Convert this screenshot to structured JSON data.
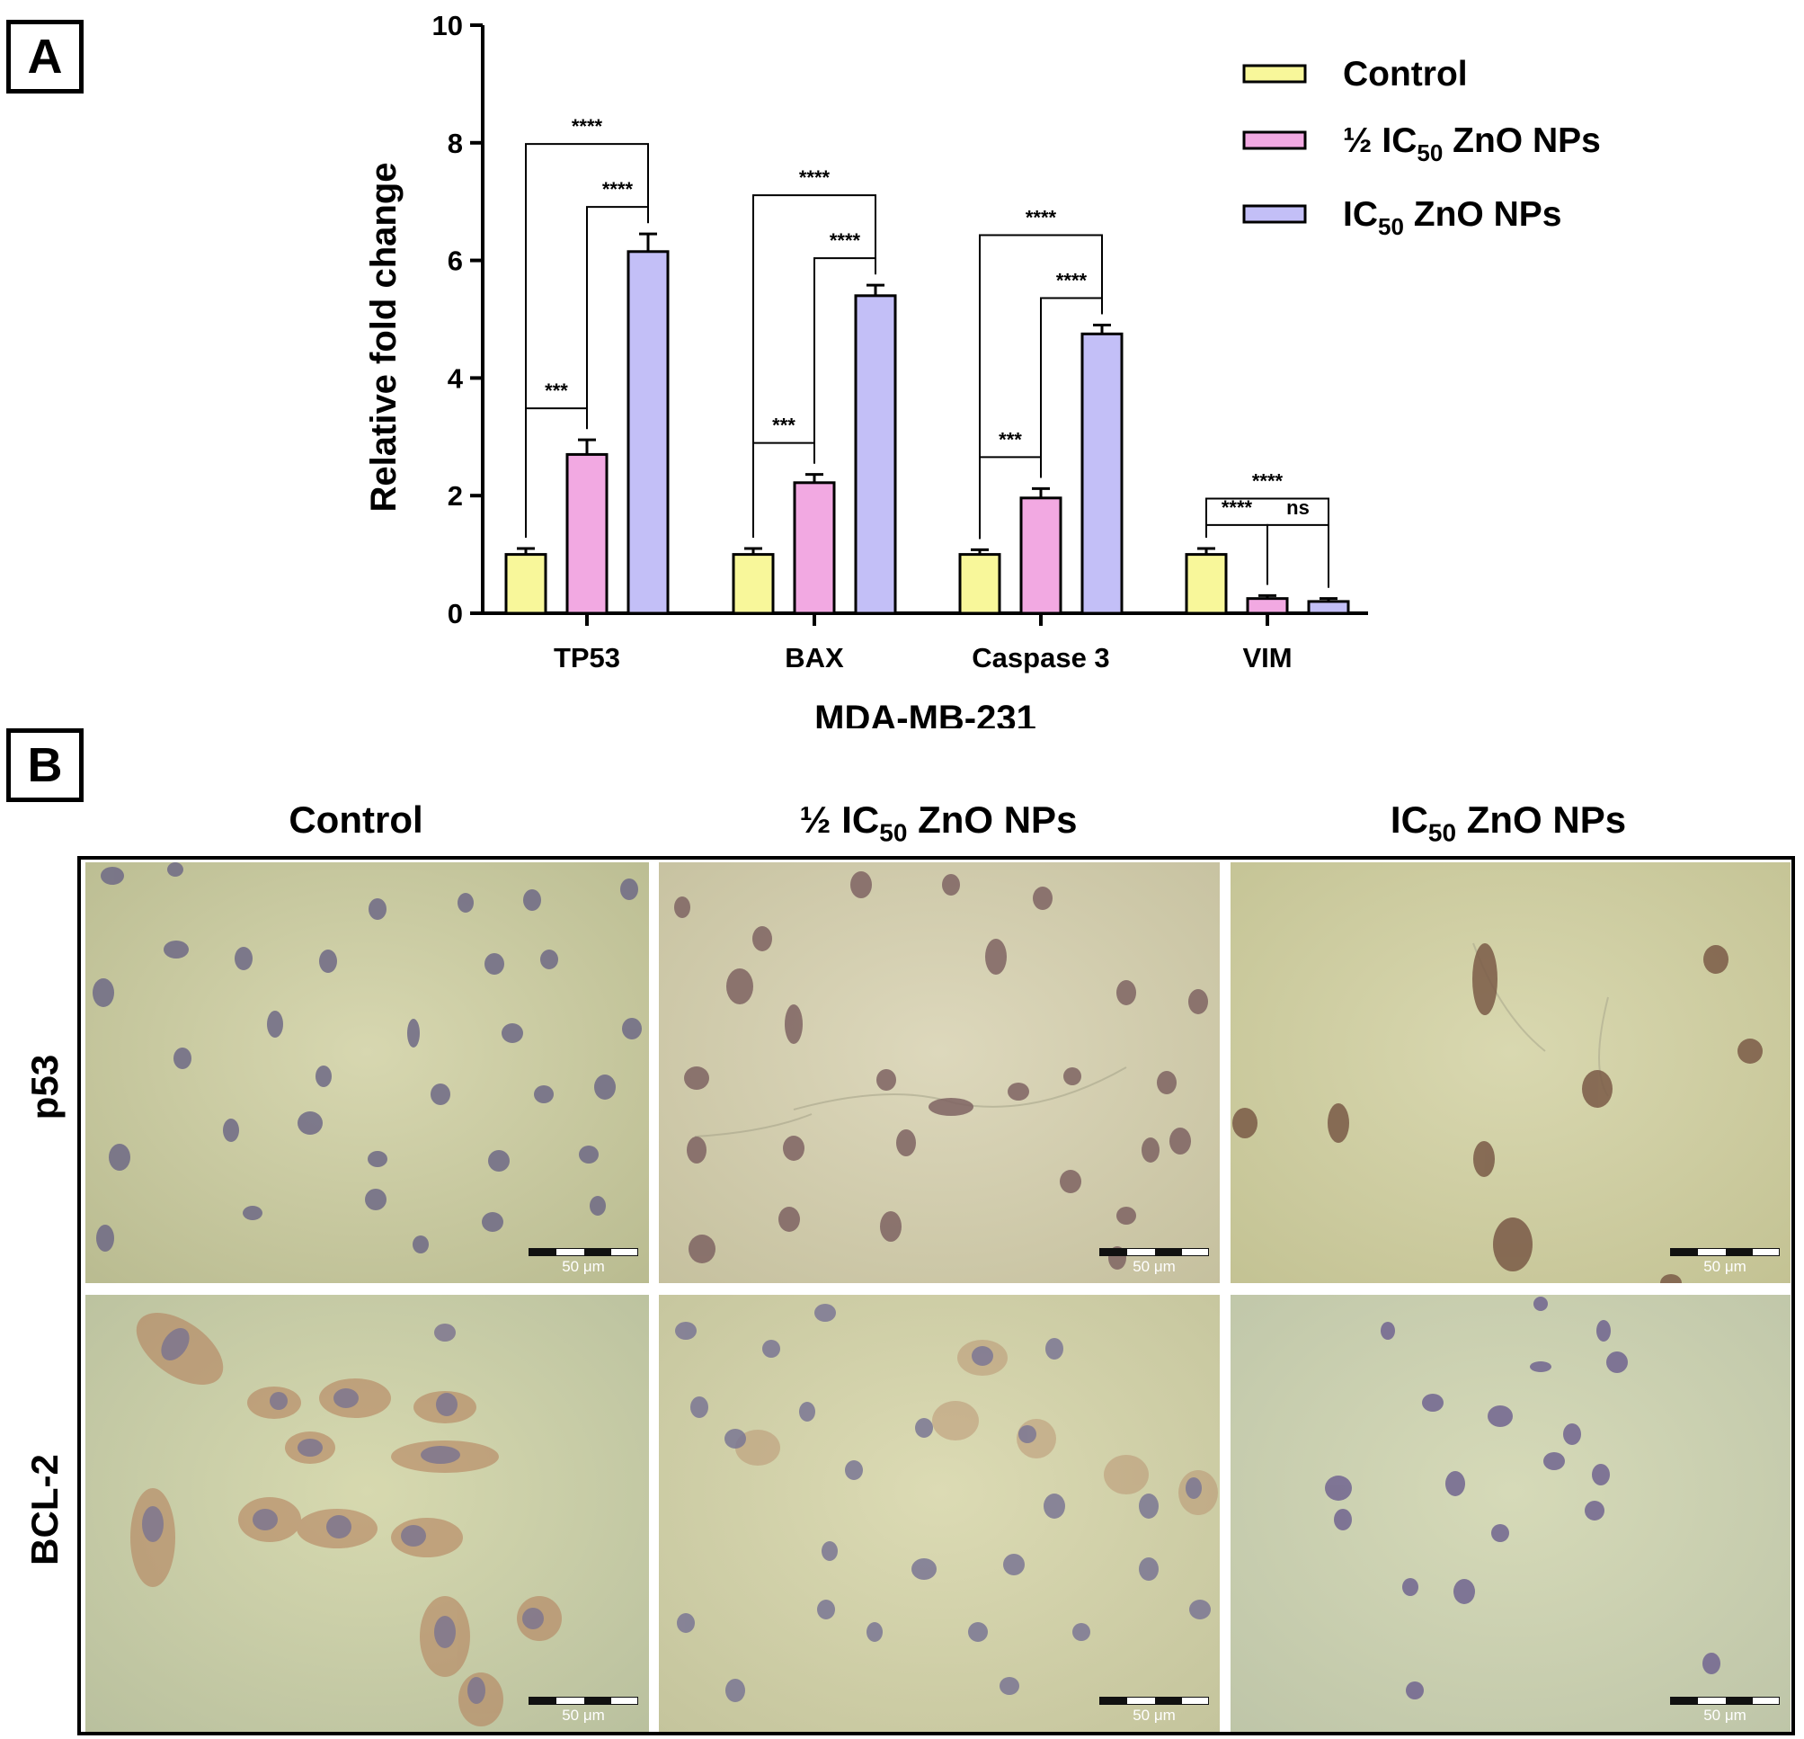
{
  "panel_a_label": "A",
  "panel_b_label": "B",
  "chart_data": {
    "type": "bar",
    "title": "",
    "xlabel": "MDA-MB-231",
    "ylabel": "Relative fold change",
    "ylim": [
      0,
      10
    ],
    "yticks": [
      "0",
      "2",
      "4",
      "6",
      "8",
      "10"
    ],
    "categories": [
      "TP53",
      "BAX",
      "Caspase 3",
      "VIM"
    ],
    "legend_position": "top-right",
    "series": [
      {
        "name": "Control",
        "label_main": "Control",
        "label_sub": "",
        "label_tail": "",
        "color": "#f8f79a",
        "values": [
          1.0,
          1.0,
          1.0,
          1.0
        ],
        "errors": [
          0.1,
          0.1,
          0.08,
          0.1
        ]
      },
      {
        "name": "½ IC50 ZnO NPs",
        "label_main": "½ IC",
        "label_sub": "50",
        "label_tail": " ZnO NPs",
        "color": "#f2a9e2",
        "values": [
          2.7,
          2.22,
          1.96,
          0.25
        ],
        "errors": [
          0.25,
          0.14,
          0.16,
          0.05
        ]
      },
      {
        "name": "IC50 ZnO NPs",
        "label_main": "IC",
        "label_sub": "50",
        "label_tail": " ZnO NPs",
        "color": "#c3bff7",
        "values": [
          6.15,
          5.4,
          4.75,
          0.2
        ],
        "errors": [
          0.3,
          0.18,
          0.15,
          0.05
        ]
      }
    ],
    "significance": [
      {
        "category": "TP53",
        "from": 0,
        "to": 1,
        "text": "***"
      },
      {
        "category": "TP53",
        "from": 1,
        "to": 2,
        "text": "****"
      },
      {
        "category": "TP53",
        "from": 0,
        "to": 2,
        "text": "****"
      },
      {
        "category": "BAX",
        "from": 0,
        "to": 1,
        "text": "***"
      },
      {
        "category": "BAX",
        "from": 1,
        "to": 2,
        "text": "****"
      },
      {
        "category": "BAX",
        "from": 0,
        "to": 2,
        "text": "****"
      },
      {
        "category": "Caspase 3",
        "from": 0,
        "to": 1,
        "text": "***"
      },
      {
        "category": "Caspase 3",
        "from": 1,
        "to": 2,
        "text": "****"
      },
      {
        "category": "Caspase 3",
        "from": 0,
        "to": 2,
        "text": "****"
      },
      {
        "category": "VIM",
        "from": 0,
        "to": 1,
        "text": "****"
      },
      {
        "category": "VIM",
        "from": 1,
        "to": 2,
        "text": "ns"
      },
      {
        "category": "VIM",
        "from": 0,
        "to": 2,
        "text": "****"
      }
    ]
  },
  "panel_b": {
    "columns": [
      {
        "main": "Control",
        "sub": "",
        "tail": ""
      },
      {
        "main": "½ IC",
        "sub": "50",
        "tail": " ZnO NPs"
      },
      {
        "main": "IC",
        "sub": "50",
        "tail": " ZnO NPs"
      }
    ],
    "rows": [
      "p53",
      "BCL-2"
    ],
    "scale_bar_text": "50 μm"
  }
}
